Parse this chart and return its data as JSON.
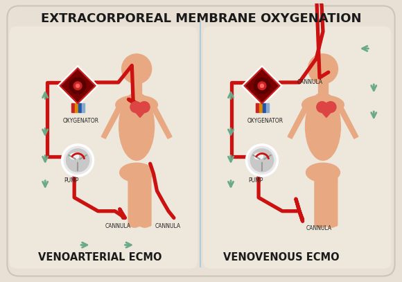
{
  "title": "EXTRACORPOREAL MEMBRANE OXYGENATION",
  "subtitle_left": "VENOARTERIAL ECMO",
  "subtitle_right": "VENOVENOUS ECMO",
  "bg_color": "#e8e0d5",
  "panel_color": "#ede7dc",
  "body_color": "#e8a882",
  "red_color": "#cc1111",
  "dark_red": "#7a0000",
  "blue_color": "#4488cc",
  "green_arrow": "#6aaa88",
  "title_color": "#1a1a1a",
  "label_color": "#222222",
  "divider_color": "#aaccdd",
  "pump_gray": "#c8c8c8",
  "pump_light": "#e8e8e8",
  "white": "#ffffff"
}
